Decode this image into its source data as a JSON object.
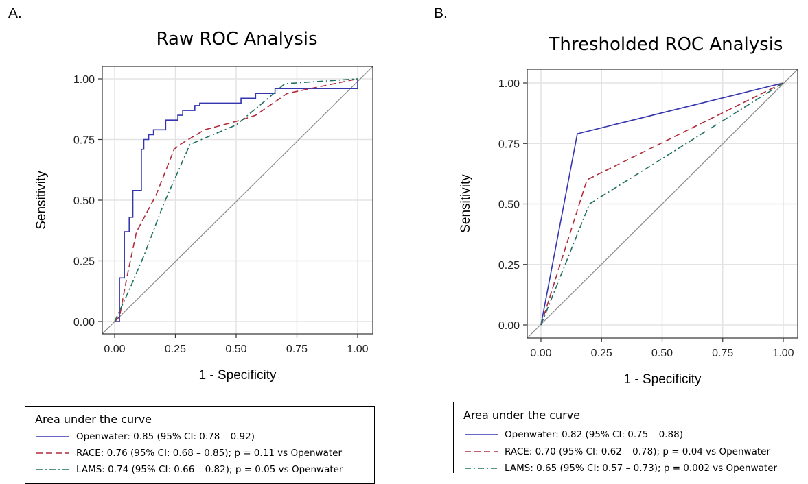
{
  "panels": [
    {
      "letter": "A.",
      "chart_title": "Raw ROC Analysis",
      "legend_title": "Area under the curve"
    },
    {
      "letter": "B.",
      "chart_title": "Thresholded ROC Analysis",
      "legend_title": "Area under the curve"
    }
  ],
  "colors": {
    "openwater": "#3535b0",
    "race": "#b02a3a",
    "lams": "#1f6f5f",
    "reference": "#8a8a8a",
    "grid": "#e3e3e3"
  },
  "chart_data": [
    {
      "type": "line",
      "title": "Raw ROC Analysis",
      "xlabel": "1 - Specificity",
      "ylabel": "Sensitivity",
      "xlim": [
        0,
        1
      ],
      "ylim": [
        0,
        1
      ],
      "xticks": [
        "0.00",
        "0.25",
        "0.50",
        "0.75",
        "1.00"
      ],
      "yticks": [
        "0.00",
        "0.25",
        "0.50",
        "0.75",
        "1.00"
      ],
      "grid": true,
      "reference_line": [
        [
          0,
          0
        ],
        [
          1,
          1
        ]
      ],
      "series": [
        {
          "name": "Openwater: 0.85 (95% CI: 0.78 – 0.92)",
          "line_style": "solid",
          "step": true,
          "points": [
            [
              0,
              0
            ],
            [
              0.02,
              0.18
            ],
            [
              0.04,
              0.37
            ],
            [
              0.06,
              0.43
            ],
            [
              0.075,
              0.54
            ],
            [
              0.11,
              0.71
            ],
            [
              0.12,
              0.75
            ],
            [
              0.14,
              0.77
            ],
            [
              0.16,
              0.79
            ],
            [
              0.21,
              0.83
            ],
            [
              0.26,
              0.85
            ],
            [
              0.28,
              0.87
            ],
            [
              0.33,
              0.89
            ],
            [
              0.35,
              0.9
            ],
            [
              0.52,
              0.92
            ],
            [
              0.58,
              0.94
            ],
            [
              0.66,
              0.96
            ],
            [
              1,
              1
            ]
          ]
        },
        {
          "name": "RACE: 0.76 (95% CI: 0.68 – 0.85); p = 0.11 vs Openwater",
          "line_style": "dashed",
          "step": false,
          "points": [
            [
              0,
              0
            ],
            [
              0.02,
              0.02
            ],
            [
              0.05,
              0.18
            ],
            [
              0.09,
              0.37
            ],
            [
              0.17,
              0.52
            ],
            [
              0.245,
              0.71
            ],
            [
              0.27,
              0.73
            ],
            [
              0.37,
              0.79
            ],
            [
              0.52,
              0.83
            ],
            [
              0.58,
              0.85
            ],
            [
              0.71,
              0.94
            ],
            [
              1,
              1
            ]
          ]
        },
        {
          "name": "LAMS: 0.74 (95% CI: 0.66 – 0.82); p = 0.05 vs Openwater",
          "line_style": "dashdot",
          "step": false,
          "points": [
            [
              0,
              0
            ],
            [
              0.06,
              0.13
            ],
            [
              0.12,
              0.27
            ],
            [
              0.2,
              0.48
            ],
            [
              0.31,
              0.73
            ],
            [
              0.5,
              0.81
            ],
            [
              0.62,
              0.91
            ],
            [
              0.7,
              0.98
            ],
            [
              1,
              1
            ]
          ]
        }
      ]
    },
    {
      "type": "line",
      "title": "Thresholded ROC Analysis",
      "xlabel": "1 - Specificity",
      "ylabel": "Sensitivity",
      "xlim": [
        0,
        1
      ],
      "ylim": [
        0,
        1
      ],
      "xticks": [
        "0.00",
        "0.25",
        "0.50",
        "0.75",
        "1.00"
      ],
      "yticks": [
        "0.00",
        "0.25",
        "0.50",
        "0.75",
        "1.00"
      ],
      "grid": true,
      "reference_line": [
        [
          0,
          0
        ],
        [
          1,
          1
        ]
      ],
      "series": [
        {
          "name": "Openwater: 0.82 (95% CI: 0.75 – 0.88)",
          "line_style": "solid",
          "step": false,
          "points": [
            [
              0,
              0
            ],
            [
              0.15,
              0.79
            ],
            [
              1,
              1
            ]
          ]
        },
        {
          "name": "RACE: 0.70 (95% CI: 0.62 – 0.78); p = 0.04 vs Openwater",
          "line_style": "dashed",
          "step": false,
          "points": [
            [
              0,
              0
            ],
            [
              0.19,
              0.6
            ],
            [
              1,
              1
            ]
          ]
        },
        {
          "name": "LAMS: 0.65 (95% CI: 0.57 – 0.73); p = 0.002 vs Openwater",
          "line_style": "dashdot",
          "step": false,
          "points": [
            [
              0,
              0
            ],
            [
              0.2,
              0.5
            ],
            [
              1,
              1
            ]
          ]
        }
      ]
    }
  ]
}
